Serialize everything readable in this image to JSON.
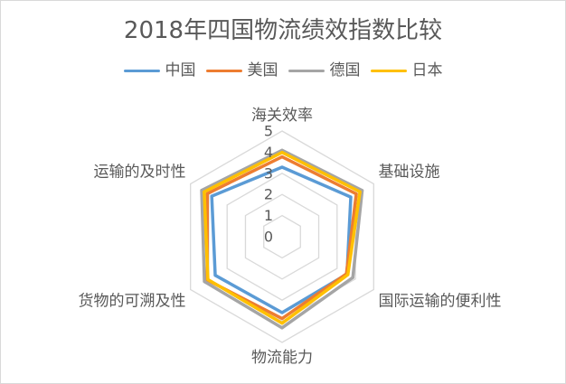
{
  "chart_data": {
    "type": "radar",
    "title": "2018年四国物流绩效指数比较",
    "categories": [
      "海关效率",
      "基础设施",
      "国际运输的便利性",
      "物流能力",
      "货物的可溯及性",
      "运输的及时性"
    ],
    "series": [
      {
        "name": "中国",
        "color": "#5B9BD5",
        "values": [
          3.29,
          3.75,
          3.54,
          3.59,
          3.65,
          3.84
        ]
      },
      {
        "name": "美国",
        "color": "#ED7D31",
        "values": [
          3.78,
          4.05,
          3.51,
          3.87,
          4.09,
          4.08
        ]
      },
      {
        "name": "德国",
        "color": "#A5A5A5",
        "values": [
          4.09,
          4.37,
          3.86,
          4.31,
          4.24,
          4.39
        ]
      },
      {
        "name": "日本",
        "color": "#FFC000",
        "values": [
          3.99,
          4.25,
          3.59,
          4.09,
          4.05,
          4.25
        ]
      }
    ],
    "rlim": [
      0,
      5
    ],
    "rticks": [
      0,
      1,
      2,
      3,
      4,
      5
    ],
    "grid": true,
    "grid_color": "#D9D9D9",
    "legend_position": "top"
  }
}
